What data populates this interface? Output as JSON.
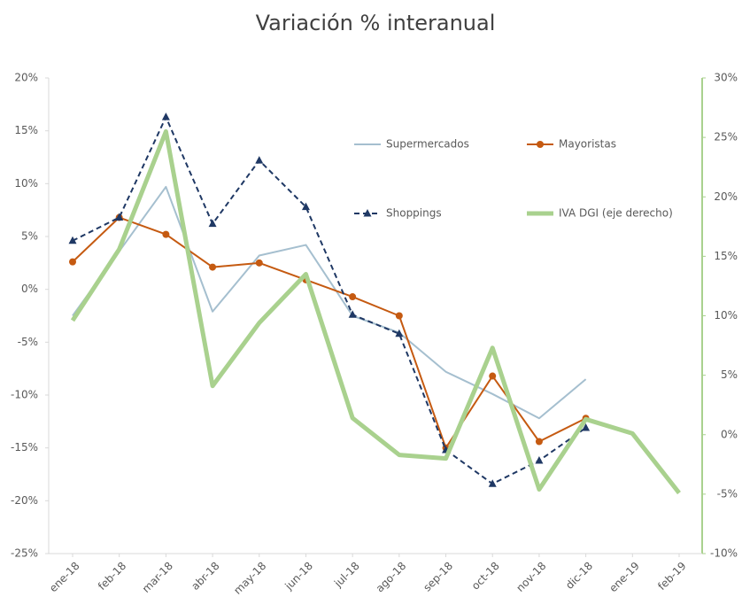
{
  "chart_data": {
    "type": "line",
    "title": "Variación % interanual",
    "categories": [
      "ene-18",
      "feb-18",
      "mar-18",
      "abr-18",
      "may-18",
      "jun-18",
      "jul-18",
      "ago-18",
      "sep-18",
      "oct-18",
      "nov-18",
      "dic-18",
      "ene-19",
      "feb-19"
    ],
    "series": [
      {
        "name": "Supermercados",
        "color": "#a5bfcf",
        "marker": "none",
        "dash": false,
        "width": 2,
        "values": [
          -2.5,
          3.6,
          9.7,
          -2.1,
          3.2,
          4.2,
          -2.5,
          -4.1,
          -7.8,
          -9.9,
          -12.2,
          -8.5,
          null,
          null
        ]
      },
      {
        "name": "Mayoristas",
        "color": "#c55a11",
        "marker": "circle",
        "dash": false,
        "width": 2,
        "values": [
          2.6,
          6.8,
          5.2,
          2.1,
          2.5,
          0.9,
          -0.7,
          -2.5,
          -15.0,
          -8.2,
          -14.4,
          -12.2,
          null,
          null
        ]
      },
      {
        "name": "Shoppings",
        "color": "#1f3864",
        "marker": "triangle",
        "dash": true,
        "width": 2,
        "values": [
          4.6,
          6.8,
          16.3,
          6.2,
          12.2,
          7.8,
          -2.4,
          -4.2,
          -15.2,
          -18.4,
          -16.2,
          -13.1,
          null,
          null
        ]
      },
      {
        "name": "IVA DGI (eje derecho)",
        "color": "#a9d18e",
        "marker": "none",
        "dash": false,
        "width": 5,
        "axis": "y2",
        "values": [
          9.6,
          15.6,
          25.5,
          4.1,
          9.4,
          13.5,
          1.4,
          -1.7,
          -2.0,
          7.3,
          -4.6,
          1.3,
          0.1,
          -4.9
        ]
      }
    ],
    "ylim": [
      -25,
      20
    ],
    "yticks": [
      {
        "value": -25,
        "label": "-25%"
      },
      {
        "value": -20,
        "label": "-20%"
      },
      {
        "value": -15,
        "label": "-15%"
      },
      {
        "value": -10,
        "label": "-10%"
      },
      {
        "value": -5,
        "label": "-5%"
      },
      {
        "value": 0,
        "label": "0%"
      },
      {
        "value": 5,
        "label": "5%"
      },
      {
        "value": 10,
        "label": "10%"
      },
      {
        "value": 15,
        "label": "15%"
      },
      {
        "value": 20,
        "label": "20%"
      }
    ],
    "y2lim": [
      -10,
      30
    ],
    "y2ticks": [
      {
        "value": -10,
        "label": "-10%"
      },
      {
        "value": -5,
        "label": "-5%"
      },
      {
        "value": 0,
        "label": "0%"
      },
      {
        "value": 5,
        "label": "5%"
      },
      {
        "value": 10,
        "label": "10%"
      },
      {
        "value": 15,
        "label": "15%"
      },
      {
        "value": 20,
        "label": "20%"
      },
      {
        "value": 25,
        "label": "25%"
      },
      {
        "value": 30,
        "label": "30%"
      }
    ],
    "y2_axis_color": "#a9d18e",
    "grid": false
  }
}
